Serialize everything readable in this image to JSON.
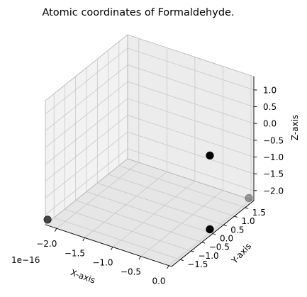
{
  "chart_data": {
    "type": "scatter",
    "projection": "3d",
    "title": "Atomic coordinates of Formaldehyde.",
    "xlabel": "X-axis",
    "ylabel": "Y-axis",
    "zlabel": "Z-axis",
    "x_offset_label": "1e−16",
    "xlim": [
      -2.2,
      0.05
    ],
    "ylim": [
      -1.9,
      1.9
    ],
    "zlim": [
      -2.3,
      1.4
    ],
    "x_ticks": [
      "−2.0",
      "−1.5",
      "−1.0",
      "−0.5",
      "0.0"
    ],
    "y_ticks": [
      "−1.5",
      "−1.0",
      "−0.5",
      "0.0",
      "0.5",
      "1.0",
      "1.5"
    ],
    "z_ticks": [
      "−2.0",
      "−1.5",
      "−1.0",
      "−0.5",
      "0.0",
      "0.5",
      "1.0"
    ],
    "grid": true,
    "points": [
      {
        "x": 0.0,
        "y": 0.0,
        "z": 0.0,
        "color": "#000000"
      },
      {
        "x": 0.0,
        "y": 0.0,
        "z": -2.2,
        "color": "#000000"
      },
      {
        "x": 0.0,
        "y": 1.8,
        "z": -2.2,
        "color": "#000000"
      },
      {
        "x": -2.2,
        "y": -1.8,
        "z": -2.2,
        "color": "#000000"
      }
    ]
  }
}
